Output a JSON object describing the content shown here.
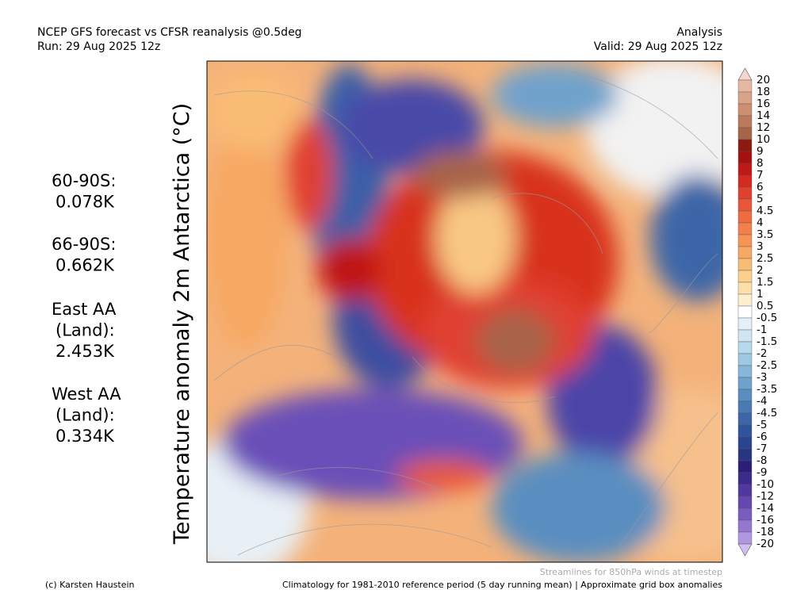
{
  "header": {
    "left": [
      "NCEP GFS forecast vs CFSR reanalysis @0.5deg",
      "Run: 29 Aug 2025 12z"
    ],
    "right": [
      "Analysis",
      "Valid: 29 Aug 2025 12z"
    ]
  },
  "side_stats": [
    [
      "60-90S:",
      "0.078K"
    ],
    [
      "66-90S:",
      "0.662K"
    ],
    [
      "East AA",
      "(Land):",
      "2.453K"
    ],
    [
      "West AA",
      "(Land):",
      "0.334K"
    ]
  ],
  "axis_title": "Temperature anomaly 2m Antarctica (°C)",
  "colorbar": {
    "labels": [
      "20",
      "18",
      "16",
      "14",
      "12",
      "10",
      "9",
      "8",
      "7",
      "6",
      "5",
      "4.5",
      "4",
      "3.5",
      "3",
      "2.5",
      "2",
      "1.5",
      "1",
      "0.5",
      "-0.5",
      "-1",
      "-1.5",
      "-2",
      "-2.5",
      "-3",
      "-3.5",
      "-4",
      "-4.5",
      "-5",
      "-6",
      "-7",
      "-8",
      "-9",
      "-10",
      "-12",
      "-14",
      "-16",
      "-18",
      "-20"
    ],
    "colors": [
      "#f5d6ca",
      "#e6b7a3",
      "#d9a38a",
      "#cc8f72",
      "#bb7a5c",
      "#a86448",
      "#8c1a10",
      "#a51010",
      "#c01818",
      "#d42a20",
      "#e04030",
      "#e85838",
      "#ee6c40",
      "#f2804a",
      "#f59455",
      "#f7a862",
      "#f9bc74",
      "#fbcf8c",
      "#fde0a8",
      "#fdf0d0",
      "#ffffff",
      "#e4f0f8",
      "#cfe5f2",
      "#b8d8ec",
      "#9fc8e2",
      "#86b6d8",
      "#6fa2cc",
      "#5a8ec0",
      "#4a7ab4",
      "#3c66a8",
      "#30549c",
      "#2a4490",
      "#283680",
      "#2c1e78",
      "#3c2a8c",
      "#5038a0",
      "#6448b0",
      "#7a5cc0",
      "#9478d0",
      "#b098e0",
      "#cfc0f0"
    ]
  },
  "footer": {
    "streamlines": "Streamlines for 850hPa winds at timestep",
    "credit": "(c) Karsten Haustein",
    "climatology": "Climatology for 1981-2010 reference period (5 day running mean) | Approximate grid box anomalies"
  }
}
